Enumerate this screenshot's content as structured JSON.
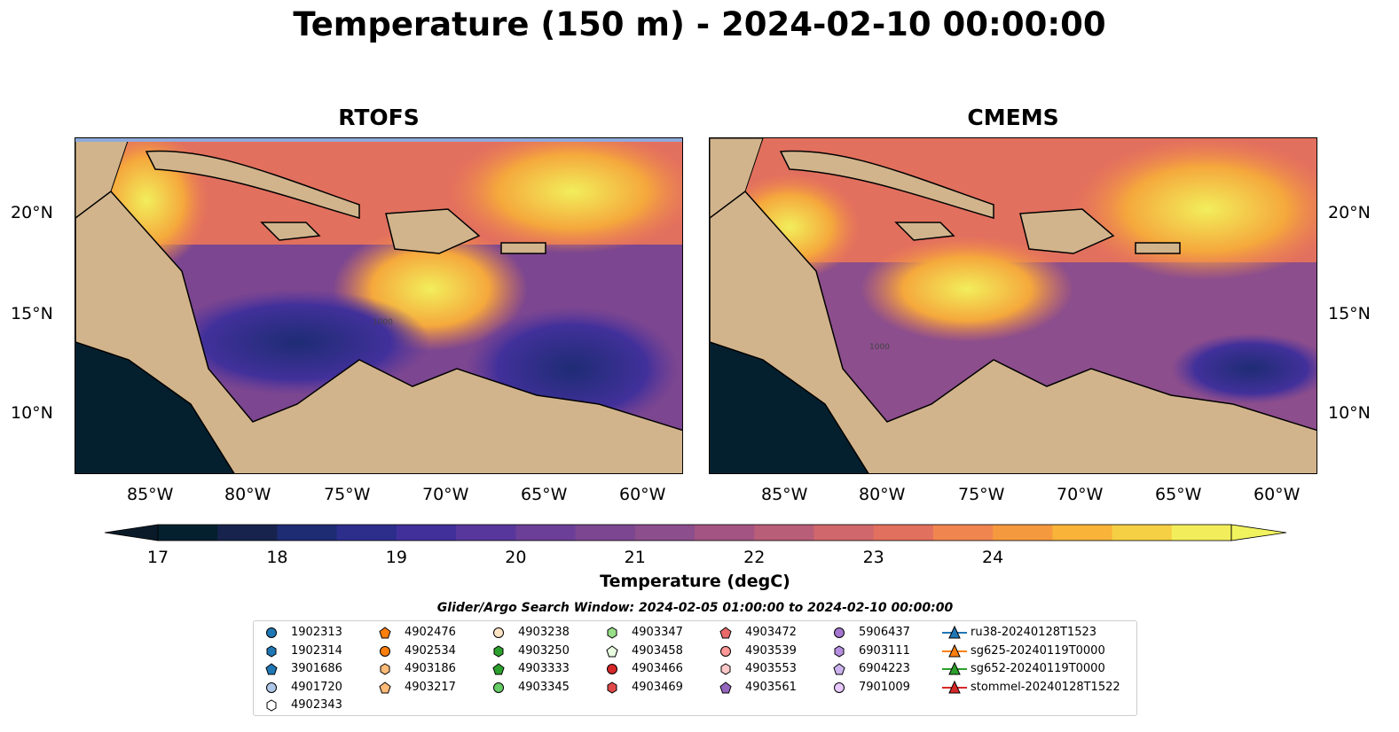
{
  "title": "Temperature (150 m) - 2024-02-10 00:00:00",
  "panels": [
    {
      "title": "RTOFS"
    },
    {
      "title": "CMEMS"
    }
  ],
  "x_ticks": [
    "85°W",
    "80°W",
    "75°W",
    "70°W",
    "65°W",
    "60°W"
  ],
  "y_ticks": [
    "20°N",
    "15°N",
    "10°N"
  ],
  "colorbar": {
    "title": "Temperature (degC)",
    "ticks": [
      "17",
      "18",
      "19",
      "20",
      "21",
      "22",
      "23",
      "24"
    ],
    "colors": [
      "#04202f",
      "#17234c",
      "#1e2c74",
      "#2d2e8c",
      "#41309a",
      "#58379c",
      "#6b3f98",
      "#7c4690",
      "#8c4e8c",
      "#a35482",
      "#b85e78",
      "#d0676c",
      "#e2705e",
      "#f08550",
      "#f5993e",
      "#f8b338",
      "#f5cf44",
      "#f2ee5b"
    ],
    "extend_low": "#0a1a28",
    "extend_high": "#f1f35e"
  },
  "search_window": "Glider/Argo Search Window: 2024-02-05 01:00:00 to 2024-02-10 00:00:00",
  "legend": [
    {
      "label": "1902313",
      "shape": "circle",
      "color": "#1f77b4"
    },
    {
      "label": "1902314",
      "shape": "hexagon",
      "color": "#1f77b4"
    },
    {
      "label": "3901686",
      "shape": "pentagon",
      "color": "#1f77b4"
    },
    {
      "label": "4901720",
      "shape": "circle",
      "color": "#aec7e8"
    },
    {
      "label": "4902343",
      "shape": "hexagon",
      "color": "#ffffff"
    },
    {
      "label": "4902476",
      "shape": "pentagon",
      "color": "#ff7f0e"
    },
    {
      "label": "4902534",
      "shape": "circle",
      "color": "#ff7f0e"
    },
    {
      "label": "4903186",
      "shape": "hexagon",
      "color": "#ffbb78"
    },
    {
      "label": "4903217",
      "shape": "pentagon",
      "color": "#ffbb78"
    },
    {
      "label": "4903238",
      "shape": "circle",
      "color": "#ffe4c4"
    },
    {
      "label": "4903250",
      "shape": "hexagon",
      "color": "#2ca02c"
    },
    {
      "label": "4903333",
      "shape": "pentagon",
      "color": "#2ca02c"
    },
    {
      "label": "4903345",
      "shape": "circle",
      "color": "#66cc66"
    },
    {
      "label": "4903347",
      "shape": "hexagon",
      "color": "#98df8a"
    },
    {
      "label": "4903458",
      "shape": "pentagon",
      "color": "#e8ffe0"
    },
    {
      "label": "4903466",
      "shape": "circle",
      "color": "#d62728"
    },
    {
      "label": "4903469",
      "shape": "hexagon",
      "color": "#e04848"
    },
    {
      "label": "4903472",
      "shape": "pentagon",
      "color": "#e86a6a"
    },
    {
      "label": "4903539",
      "shape": "circle",
      "color": "#ff9896"
    },
    {
      "label": "4903553",
      "shape": "hexagon",
      "color": "#ffc8c8"
    },
    {
      "label": "4903561",
      "shape": "pentagon",
      "color": "#9467bd"
    },
    {
      "label": "5906437",
      "shape": "circle",
      "color": "#a576d0"
    },
    {
      "label": "6903111",
      "shape": "hexagon",
      "color": "#b68ee0"
    },
    {
      "label": "6904223",
      "shape": "pentagon",
      "color": "#cbb2ee"
    },
    {
      "label": "7901009",
      "shape": "circle",
      "color": "#e8c8ff"
    },
    {
      "label": "ru38-20240128T1523",
      "shape": "triangle",
      "color": "#1f77b4"
    },
    {
      "label": "sg625-20240119T0000",
      "shape": "triangle",
      "color": "#ff7f0e"
    },
    {
      "label": "sg652-20240119T0000",
      "shape": "triangle",
      "color": "#2ca02c"
    },
    {
      "label": "stommel-20240128T1522",
      "shape": "triangle",
      "color": "#d62728"
    }
  ],
  "contour_labels": [
    "1000",
    "1000"
  ]
}
